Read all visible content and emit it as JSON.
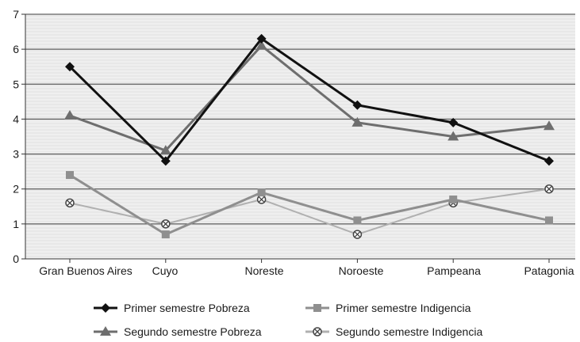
{
  "chart_data": {
    "type": "line",
    "categories": [
      "Gran Buenos Aires",
      "Cuyo",
      "Noreste",
      "Noroeste",
      "Pampeana",
      "Patagonia"
    ],
    "ylim": [
      0,
      7
    ],
    "yticks": [
      0,
      1,
      2,
      3,
      4,
      5,
      6,
      7
    ],
    "grid": true,
    "legend_position": "bottom",
    "series": [
      {
        "name": "Primer semestre Pobreza",
        "values": [
          5.5,
          2.8,
          6.3,
          4.4,
          3.9,
          2.8
        ],
        "color": "#111111",
        "marker": "diamond",
        "width": 3
      },
      {
        "name": "Segundo semestre Pobreza",
        "values": [
          4.1,
          3.1,
          6.1,
          3.9,
          3.5,
          3.8
        ],
        "color": "#6e6e6e",
        "marker": "triangle",
        "width": 3
      },
      {
        "name": "Primer semestre Indigencia",
        "values": [
          2.4,
          0.7,
          1.9,
          1.1,
          1.7,
          1.1
        ],
        "color": "#8f8f8f",
        "marker": "square",
        "width": 3
      },
      {
        "name": "Segundo semestre Indigencia",
        "values": [
          1.6,
          1.0,
          1.7,
          0.7,
          1.6,
          2.0
        ],
        "color": "#b0b0b0",
        "marker": "xcircle",
        "width": 2
      }
    ]
  }
}
